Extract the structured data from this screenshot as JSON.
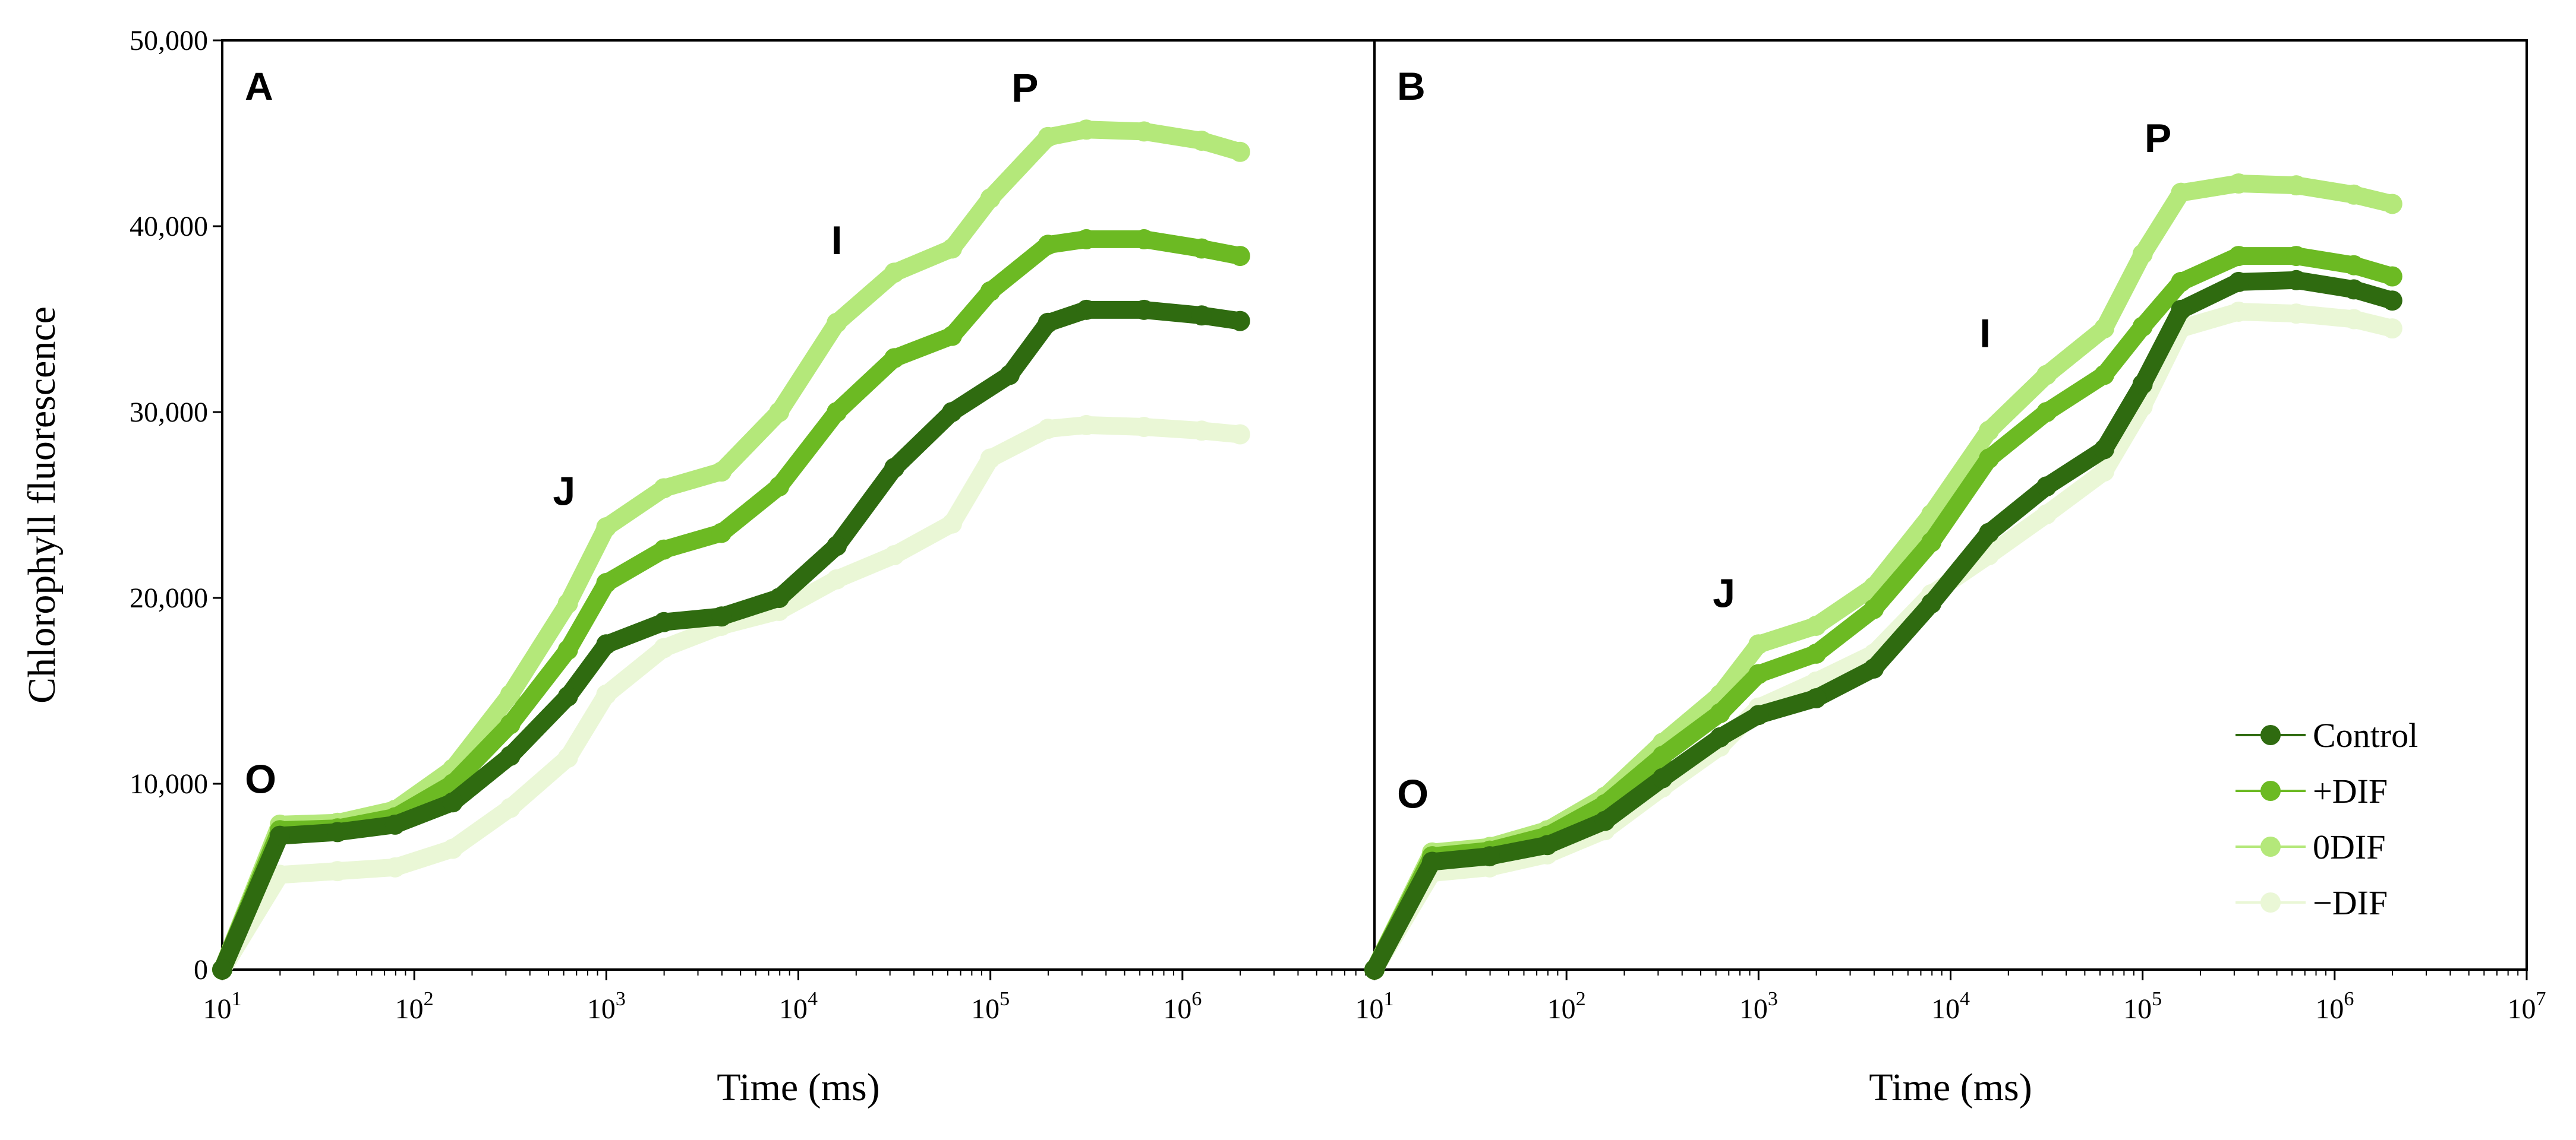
{
  "chart_data": {
    "type": "line",
    "y_axis_title": "Chlorophyll fluorescence",
    "x_axis_title": "Time (ms)",
    "ylim": [
      0,
      50000
    ],
    "y_ticks": [
      0,
      10000,
      20000,
      30000,
      40000,
      50000
    ],
    "y_tick_labels": [
      "0",
      "10,000",
      "20,000",
      "30,000",
      "40,000",
      "50,000"
    ],
    "x_scale": "log10",
    "x_tick_exponents": [
      1,
      2,
      3,
      4,
      5,
      6,
      7
    ],
    "x_tick_base": "10",
    "legend": {
      "position": "lower-right of panel B",
      "entries": [
        "Control",
        "+DIF",
        "0DIF",
        "−DIF"
      ]
    },
    "series_colors": {
      "Control": "#2f6b10",
      "+DIF": "#6cba23",
      "0DIF": "#b4e87a",
      "−DIF": "#eaf7d6"
    },
    "panels": [
      {
        "label": "A",
        "xlim_log10": [
          1,
          7
        ],
        "x_tick_label_exponents": [
          1,
          2,
          3,
          4,
          5,
          6
        ],
        "phase_labels": [
          {
            "text": "O",
            "x_log10": 1.2,
            "y": 9500
          },
          {
            "text": "J",
            "x_log10": 2.78,
            "y": 25000
          },
          {
            "text": "I",
            "x_log10": 4.2,
            "y": 38500
          },
          {
            "text": "P",
            "x_log10": 5.18,
            "y": 46700
          }
        ],
        "series": [
          {
            "name": "Control",
            "points": [
              [
                1,
                0
              ],
              [
                1.3,
                7200
              ],
              [
                1.6,
                7400
              ],
              [
                1.9,
                7800
              ],
              [
                2.2,
                9000
              ],
              [
                2.5,
                11500
              ],
              [
                2.8,
                14700
              ],
              [
                3,
                17500
              ],
              [
                3.3,
                18700
              ],
              [
                3.6,
                19000
              ],
              [
                3.9,
                20000
              ],
              [
                4.2,
                22800
              ],
              [
                4.5,
                27000
              ],
              [
                4.8,
                30000
              ],
              [
                5.1,
                32000
              ],
              [
                5.3,
                34800
              ],
              [
                5.5,
                35500
              ],
              [
                5.8,
                35500
              ],
              [
                6.1,
                35200
              ],
              [
                6.3,
                34900
              ]
            ]
          },
          {
            "name": "+DIF",
            "points": [
              [
                1,
                0
              ],
              [
                1.3,
                7500
              ],
              [
                1.6,
                7600
              ],
              [
                1.9,
                8200
              ],
              [
                2.2,
                10000
              ],
              [
                2.5,
                13200
              ],
              [
                2.8,
                17200
              ],
              [
                3,
                20800
              ],
              [
                3.3,
                22600
              ],
              [
                3.6,
                23500
              ],
              [
                3.9,
                26000
              ],
              [
                4.2,
                30000
              ],
              [
                4.5,
                32900
              ],
              [
                4.8,
                34100
              ],
              [
                5,
                36500
              ],
              [
                5.3,
                39000
              ],
              [
                5.5,
                39300
              ],
              [
                5.8,
                39300
              ],
              [
                6.1,
                38800
              ],
              [
                6.3,
                38400
              ]
            ]
          },
          {
            "name": "0DIF",
            "points": [
              [
                1,
                0
              ],
              [
                1.3,
                7800
              ],
              [
                1.6,
                7900
              ],
              [
                1.9,
                8600
              ],
              [
                2.2,
                10800
              ],
              [
                2.5,
                14800
              ],
              [
                2.8,
                19700
              ],
              [
                3,
                23800
              ],
              [
                3.3,
                25900
              ],
              [
                3.6,
                26800
              ],
              [
                3.9,
                30000
              ],
              [
                4.2,
                34800
              ],
              [
                4.5,
                37500
              ],
              [
                4.8,
                38800
              ],
              [
                5,
                41500
              ],
              [
                5.3,
                44800
              ],
              [
                5.5,
                45200
              ],
              [
                5.8,
                45100
              ],
              [
                6.1,
                44600
              ],
              [
                6.3,
                44000
              ]
            ]
          },
          {
            "name": "−DIF",
            "points": [
              [
                1,
                0
              ],
              [
                1.3,
                5100
              ],
              [
                1.6,
                5300
              ],
              [
                1.9,
                5500
              ],
              [
                2.2,
                6500
              ],
              [
                2.5,
                8700
              ],
              [
                2.8,
                11400
              ],
              [
                3,
                14800
              ],
              [
                3.3,
                17300
              ],
              [
                3.6,
                18500
              ],
              [
                3.9,
                19300
              ],
              [
                4.2,
                21000
              ],
              [
                4.5,
                22300
              ],
              [
                4.8,
                24000
              ],
              [
                5,
                27500
              ],
              [
                5.3,
                29100
              ],
              [
                5.5,
                29300
              ],
              [
                5.8,
                29200
              ],
              [
                6.1,
                29000
              ],
              [
                6.3,
                28800
              ]
            ]
          }
        ]
      },
      {
        "label": "B",
        "xlim_log10": [
          1,
          7
        ],
        "x_tick_label_exponents": [
          1,
          2,
          3,
          4,
          5,
          6,
          7
        ],
        "phase_labels": [
          {
            "text": "O",
            "x_log10": 1.2,
            "y": 8700
          },
          {
            "text": "J",
            "x_log10": 2.82,
            "y": 19500
          },
          {
            "text": "I",
            "x_log10": 4.18,
            "y": 33500
          },
          {
            "text": "P",
            "x_log10": 5.08,
            "y": 44000
          }
        ],
        "series": [
          {
            "name": "Control",
            "points": [
              [
                1,
                0
              ],
              [
                1.3,
                5800
              ],
              [
                1.6,
                6100
              ],
              [
                1.9,
                6700
              ],
              [
                2.2,
                8000
              ],
              [
                2.5,
                10300
              ],
              [
                2.8,
                12500
              ],
              [
                3,
                13700
              ],
              [
                3.3,
                14600
              ],
              [
                3.6,
                16200
              ],
              [
                3.9,
                19700
              ],
              [
                4.2,
                23500
              ],
              [
                4.5,
                26000
              ],
              [
                4.8,
                28000
              ],
              [
                5,
                31500
              ],
              [
                5.2,
                35500
              ],
              [
                5.5,
                37000
              ],
              [
                5.8,
                37100
              ],
              [
                6.1,
                36600
              ],
              [
                6.3,
                36000
              ]
            ]
          },
          {
            "name": "+DIF",
            "points": [
              [
                1,
                0
              ],
              [
                1.3,
                6100
              ],
              [
                1.6,
                6400
              ],
              [
                1.9,
                7200
              ],
              [
                2.2,
                8900
              ],
              [
                2.5,
                11500
              ],
              [
                2.8,
                13800
              ],
              [
                3,
                15900
              ],
              [
                3.3,
                17000
              ],
              [
                3.6,
                19400
              ],
              [
                3.9,
                23000
              ],
              [
                4.2,
                27500
              ],
              [
                4.5,
                30000
              ],
              [
                4.8,
                32000
              ],
              [
                5,
                34600
              ],
              [
                5.2,
                37000
              ],
              [
                5.5,
                38400
              ],
              [
                5.8,
                38400
              ],
              [
                6.1,
                37900
              ],
              [
                6.3,
                37300
              ]
            ]
          },
          {
            "name": "0DIF",
            "points": [
              [
                1,
                0
              ],
              [
                1.3,
                6300
              ],
              [
                1.6,
                6600
              ],
              [
                1.9,
                7500
              ],
              [
                2.2,
                9300
              ],
              [
                2.5,
                12200
              ],
              [
                2.8,
                14800
              ],
              [
                3,
                17500
              ],
              [
                3.3,
                18500
              ],
              [
                3.6,
                20600
              ],
              [
                3.9,
                24500
              ],
              [
                4.2,
                29000
              ],
              [
                4.5,
                32000
              ],
              [
                4.8,
                34500
              ],
              [
                5,
                38500
              ],
              [
                5.2,
                41800
              ],
              [
                5.5,
                42300
              ],
              [
                5.8,
                42200
              ],
              [
                6.1,
                41700
              ],
              [
                6.3,
                41200
              ]
            ]
          },
          {
            "name": "−DIF",
            "points": [
              [
                1,
                0
              ],
              [
                1.3,
                5200
              ],
              [
                1.6,
                5500
              ],
              [
                1.9,
                6200
              ],
              [
                2.2,
                7500
              ],
              [
                2.5,
                9800
              ],
              [
                2.8,
                12000
              ],
              [
                3,
                14100
              ],
              [
                3.3,
                15500
              ],
              [
                3.6,
                17000
              ],
              [
                3.9,
                20200
              ],
              [
                4.2,
                22300
              ],
              [
                4.5,
                24500
              ],
              [
                4.8,
                26800
              ],
              [
                5,
                30300
              ],
              [
                5.2,
                34500
              ],
              [
                5.5,
                35400
              ],
              [
                5.8,
                35300
              ],
              [
                6.1,
                35000
              ],
              [
                6.3,
                34500
              ]
            ]
          }
        ]
      }
    ]
  }
}
